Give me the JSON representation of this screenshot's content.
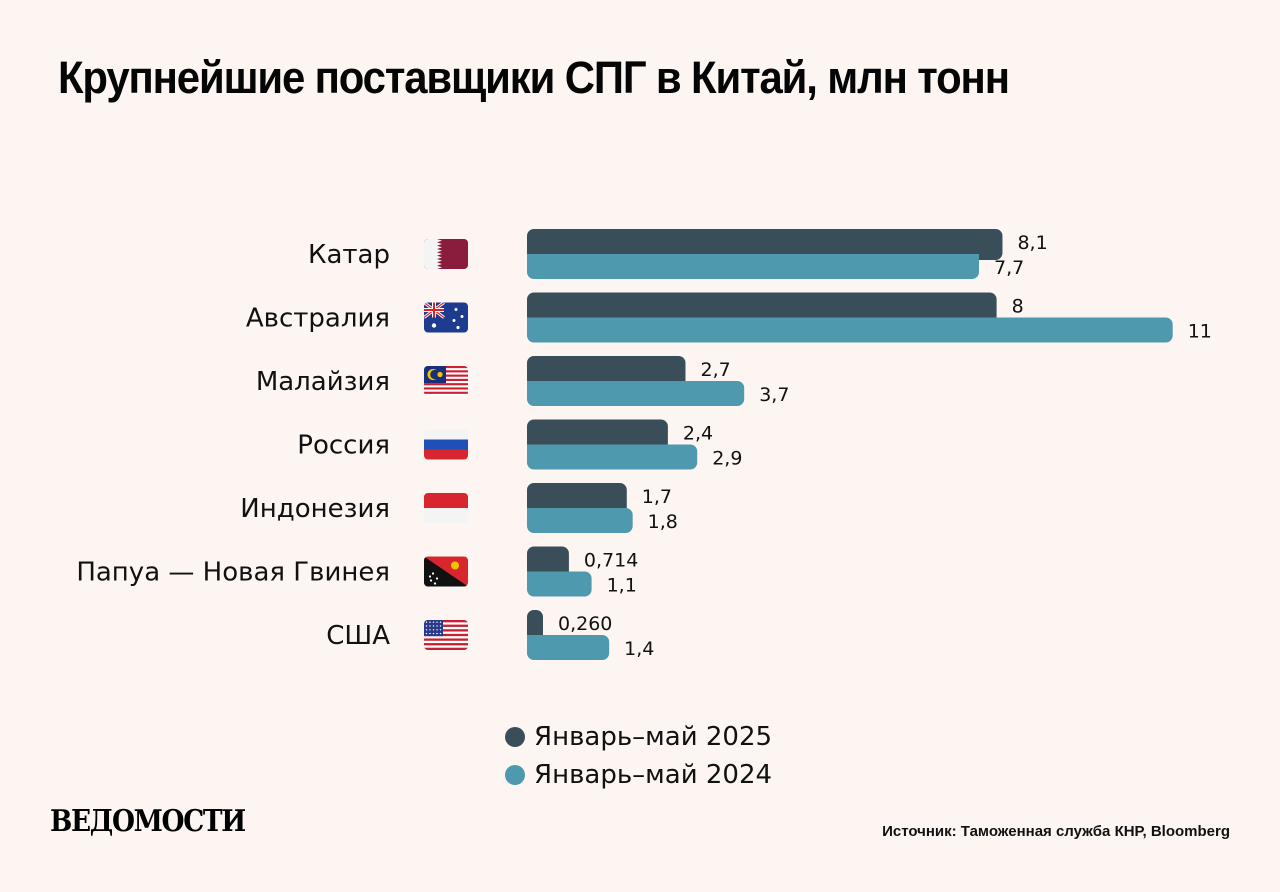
{
  "header": {
    "title": "Крупнейшие поставщики СПГ в Китай, млн тонн"
  },
  "colors": {
    "background": "#fcf5f2",
    "series_2025": "#394e58",
    "series_2024": "#4e99ae"
  },
  "chart_data": {
    "type": "bar",
    "orientation": "horizontal",
    "title": "Крупнейшие поставщики СПГ в Китай, млн тонн",
    "xlabel": "",
    "ylabel": "",
    "xlim": [
      0,
      11
    ],
    "grid": false,
    "legend_position": "bottom-center",
    "categories": [
      "Катар",
      "Австралия",
      "Малайзия",
      "Россия",
      "Индонезия",
      "Папуа — Новая Гвинея",
      "США"
    ],
    "flags": [
      "qatar-flag-icon",
      "australia-flag-icon",
      "malaysia-flag-icon",
      "russia-flag-icon",
      "indonesia-flag-icon",
      "papua-new-guinea-flag-icon",
      "usa-flag-icon"
    ],
    "series": [
      {
        "name": "Январь–май 2025",
        "color": "#394e58",
        "values": [
          8.1,
          8,
          2.7,
          2.4,
          1.7,
          0.714,
          0.26
        ],
        "labels": [
          "8,1",
          "8",
          "2,7",
          "2,4",
          "1,7",
          "0,714",
          "0,260"
        ]
      },
      {
        "name": "Январь–май 2024",
        "color": "#4e99ae",
        "values": [
          7.7,
          11,
          3.7,
          2.9,
          1.8,
          1.1,
          1.4
        ],
        "labels": [
          "7,7",
          "11",
          "3,7",
          "2,9",
          "1,8",
          "1,1",
          "1,4"
        ]
      }
    ]
  },
  "legend": {
    "items": [
      "Январь–май 2025",
      "Январь–май 2024"
    ]
  },
  "footer": {
    "logo": "ВЕДОМОСТИ",
    "source": "Источник: Таможенная служба КНР, Bloomberg"
  }
}
